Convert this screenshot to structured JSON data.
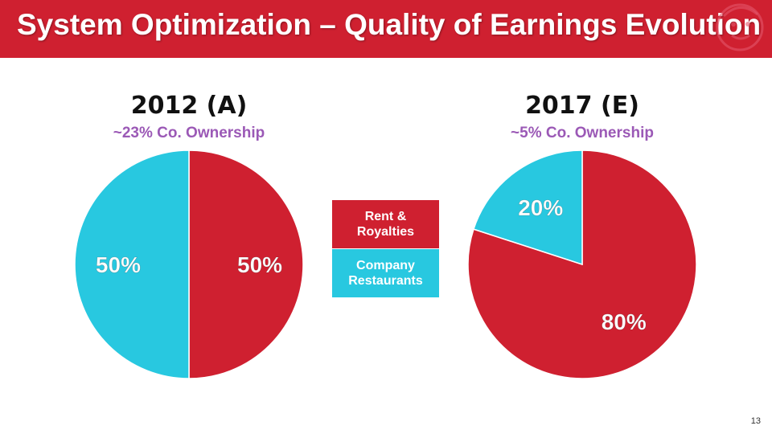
{
  "header": {
    "title": "System Optimization – Quality of Earnings Evolution"
  },
  "colors": {
    "rent": "#cf2030",
    "company": "#28c8e0",
    "subtitle": "#9b59b6"
  },
  "chart_data": [
    {
      "type": "pie",
      "title": "2012 (A)",
      "subtitle": "~23% Co. Ownership",
      "categories": [
        "Rent & Royalties",
        "Company Restaurants"
      ],
      "values": [
        50,
        50
      ],
      "labels": [
        "50%",
        "50%"
      ]
    },
    {
      "type": "pie",
      "title": "2017 (E)",
      "subtitle": "~5% Co. Ownership",
      "categories": [
        "Rent & Royalties",
        "Company Restaurants"
      ],
      "values": [
        80,
        20
      ],
      "labels": [
        "80%",
        "20%"
      ]
    }
  ],
  "legend": {
    "rent_label": "Rent & Royalties",
    "company_label": "Company Restaurants"
  },
  "page_number": "13"
}
